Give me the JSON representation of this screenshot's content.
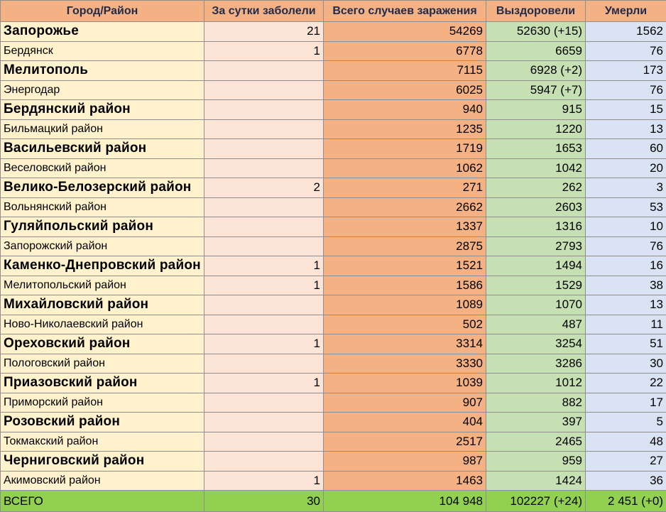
{
  "headers": {
    "name": "Город/Район",
    "day": "За сутки заболели",
    "total": "Всего случаев заражения",
    "recovered": "Выздоровели",
    "died": "Умерли"
  },
  "rows": [
    {
      "name": "Запорожье",
      "day": "21",
      "total": "54269",
      "recovered": "52630 (+15)",
      "died": "1562",
      "style": "big"
    },
    {
      "name": "Бердянск",
      "day": "1",
      "total": "6778",
      "recovered": "6659",
      "died": "76",
      "style": "small"
    },
    {
      "name": "Мелитополь",
      "day": "",
      "total": "7115",
      "recovered": "6928 (+2)",
      "died": "173",
      "style": "big"
    },
    {
      "name": "Энергодар",
      "day": "",
      "total": "6025",
      "recovered": "5947 (+7)",
      "died": "76",
      "style": "small"
    },
    {
      "name": "Бердянский район",
      "day": "",
      "total": "940",
      "recovered": "915",
      "died": "15",
      "style": "big"
    },
    {
      "name": "Бильмацкий район",
      "day": "",
      "total": "1235",
      "recovered": "1220",
      "died": "13",
      "style": "small"
    },
    {
      "name": "Васильевский район",
      "day": "",
      "total": "1719",
      "recovered": "1653",
      "died": "60",
      "style": "big"
    },
    {
      "name": "Веселовский район",
      "day": "",
      "total": "1062",
      "recovered": "1042",
      "died": "20",
      "style": "small"
    },
    {
      "name": "Велико-Белозерский район",
      "day": "2",
      "total": "271",
      "recovered": "262",
      "died": "3",
      "style": "big"
    },
    {
      "name": "Вольнянский район",
      "day": "",
      "total": "2662",
      "recovered": "2603",
      "died": "53",
      "style": "small"
    },
    {
      "name": "Гуляйпольский район",
      "day": "",
      "total": "1337",
      "recovered": "1316",
      "died": "10",
      "style": "big"
    },
    {
      "name": "Запорожский район",
      "day": "",
      "total": "2875",
      "recovered": "2793",
      "died": "76",
      "style": "small"
    },
    {
      "name": "Каменко-Днепровский район",
      "day": "1",
      "total": "1521",
      "recovered": "1494",
      "died": "16",
      "style": "big"
    },
    {
      "name": "Мелитопольский район",
      "day": "1",
      "total": "1586",
      "recovered": "1529",
      "died": "38",
      "style": "small"
    },
    {
      "name": "Михайловский район",
      "day": "",
      "total": "1089",
      "recovered": "1070",
      "died": "13",
      "style": "big"
    },
    {
      "name": "Ново-Николаевский район",
      "day": "",
      "total": "502",
      "recovered": "487",
      "died": "11",
      "style": "small"
    },
    {
      "name": "Ореховский район",
      "day": "1",
      "total": "3314",
      "recovered": "3254",
      "died": "51",
      "style": "big"
    },
    {
      "name": "Пологовский район",
      "day": "",
      "total": "3330",
      "recovered": "3286",
      "died": "30",
      "style": "small"
    },
    {
      "name": "Приазовский район",
      "day": "1",
      "total": "1039",
      "recovered": "1012",
      "died": "22",
      "style": "big"
    },
    {
      "name": "Приморский район",
      "day": "",
      "total": "907",
      "recovered": "882",
      "died": "17",
      "style": "small"
    },
    {
      "name": "Розовский район",
      "day": "",
      "total": "404",
      "recovered": "397",
      "died": "5",
      "style": "big"
    },
    {
      "name": "Токмакский район",
      "day": "",
      "total": "2517",
      "recovered": "2465",
      "died": "48",
      "style": "small"
    },
    {
      "name": "Черниговский район",
      "day": "",
      "total": "987",
      "recovered": "959",
      "died": "27",
      "style": "big"
    },
    {
      "name": "Акимовский район",
      "day": "1",
      "total": "1463",
      "recovered": "1424",
      "died": "36",
      "style": "small"
    }
  ],
  "total_row": {
    "name": "ВСЕГО",
    "day": "30",
    "total": "104 948",
    "recovered": "102227 (+24)",
    "died": "2 451 (+0)"
  },
  "colors": {
    "name_col": "#fff2cc",
    "day_col": "#fce4d6",
    "total_col": "#f4b183",
    "recovered_col": "#c6e0b4",
    "died_col": "#dae3f3",
    "total_row": "#92d050"
  }
}
